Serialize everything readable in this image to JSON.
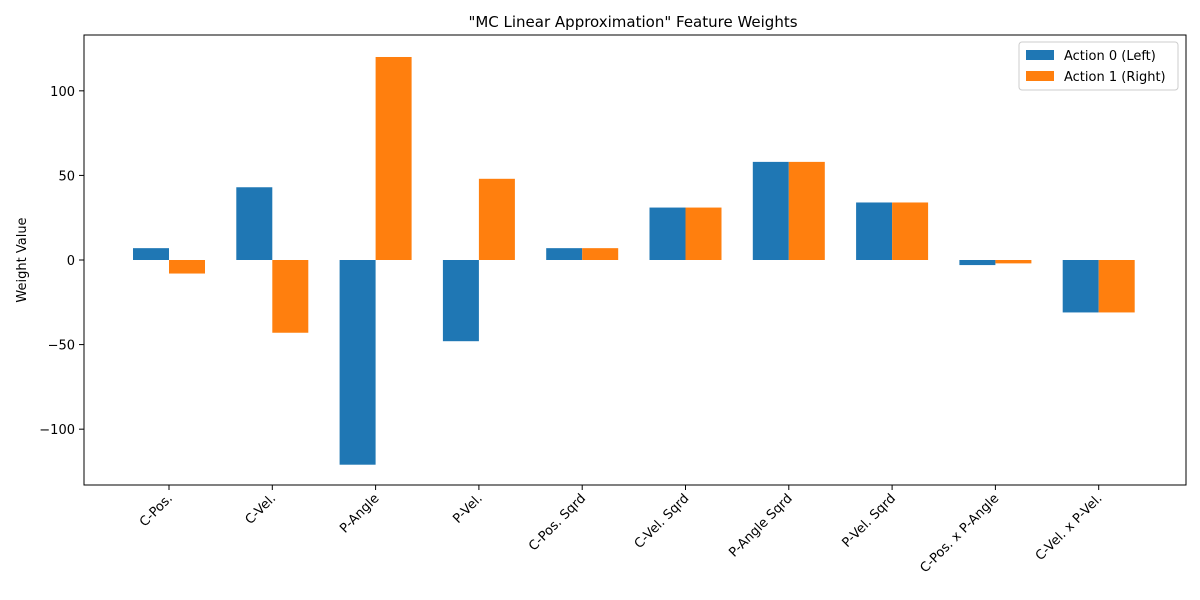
{
  "chart_data": {
    "type": "bar",
    "title": "\"MC Linear Approximation\" Feature Weights",
    "xlabel": "",
    "ylabel": "Weight Value",
    "categories": [
      "C-Pos.",
      "C-Vel.",
      "P-Angle",
      "P-Vel.",
      "C-Pos. Sqrd",
      "C-Vel. Sqrd",
      "P-Angle Sqrd",
      "P-Vel. Sqrd",
      "C-Pos. x P-Angle",
      "C-Vel. x P-Vel."
    ],
    "series": [
      {
        "name": "Action 0 (Left)",
        "color": "#1f77b4",
        "values": [
          7,
          43,
          -121,
          -48,
          7,
          31,
          58,
          34,
          -3,
          -31
        ]
      },
      {
        "name": "Action 1 (Right)",
        "color": "#ff7f0e",
        "values": [
          -8,
          -43,
          120,
          48,
          7,
          31,
          58,
          34,
          -2,
          -31
        ]
      }
    ],
    "ylim": [
      -133,
      133
    ],
    "yticks": [
      -100,
      -50,
      0,
      50,
      100
    ],
    "xtick_rotation": 45,
    "grid": false,
    "legend_position": "top-right"
  }
}
